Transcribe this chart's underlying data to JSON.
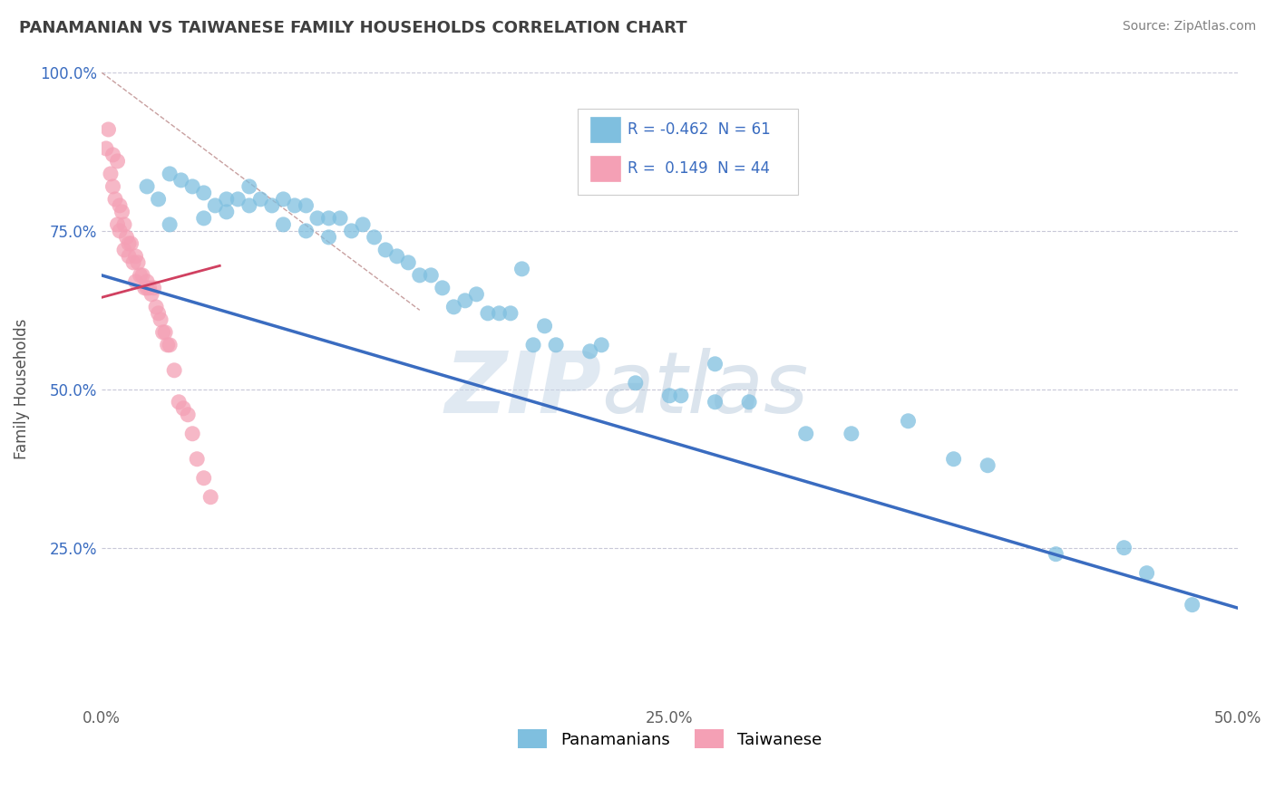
{
  "title": "PANAMANIAN VS TAIWANESE FAMILY HOUSEHOLDS CORRELATION CHART",
  "source": "Source: ZipAtlas.com",
  "ylabel": "Family Households",
  "watermark_top": "ZIP",
  "watermark_bot": "atlas",
  "xlim": [
    0.0,
    0.5
  ],
  "ylim": [
    0.0,
    1.0
  ],
  "xtick_labels": [
    "0.0%",
    "25.0%",
    "50.0%"
  ],
  "xtick_vals": [
    0.0,
    0.25,
    0.5
  ],
  "ytick_labels": [
    "25.0%",
    "50.0%",
    "75.0%",
    "100.0%"
  ],
  "ytick_vals": [
    0.25,
    0.5,
    0.75,
    1.0
  ],
  "blue_R": -0.462,
  "blue_N": 61,
  "pink_R": 0.149,
  "pink_N": 44,
  "blue_color": "#7fbfdf",
  "blue_edge": "#7fbfdf",
  "pink_color": "#f4a0b5",
  "pink_edge": "#f4a0b5",
  "line_blue": "#3a6cc0",
  "line_pink": "#d04060",
  "line_ref": "#c8a0a0",
  "legend_text_color": "#3a6cc0",
  "title_color": "#404040",
  "source_color": "#808080",
  "grid_color": "#c8c8d8",
  "background_color": "#ffffff",
  "blue_line_x": [
    0.0,
    0.5
  ],
  "blue_line_y": [
    0.68,
    0.155
  ],
  "pink_line_x": [
    0.0,
    0.052
  ],
  "pink_line_y": [
    0.645,
    0.695
  ],
  "ref_line_x": [
    0.0,
    0.14
  ],
  "ref_line_y": [
    1.0,
    0.625
  ],
  "blue_scatter_x": [
    0.02,
    0.025,
    0.03,
    0.03,
    0.035,
    0.04,
    0.045,
    0.045,
    0.05,
    0.055,
    0.055,
    0.06,
    0.065,
    0.065,
    0.07,
    0.075,
    0.08,
    0.08,
    0.085,
    0.09,
    0.09,
    0.095,
    0.1,
    0.1,
    0.105,
    0.11,
    0.115,
    0.12,
    0.125,
    0.13,
    0.135,
    0.14,
    0.145,
    0.15,
    0.155,
    0.16,
    0.165,
    0.17,
    0.175,
    0.18,
    0.19,
    0.195,
    0.2,
    0.215,
    0.22,
    0.235,
    0.25,
    0.255,
    0.27,
    0.285,
    0.31,
    0.33,
    0.355,
    0.375,
    0.39,
    0.42,
    0.45,
    0.46,
    0.185,
    0.27,
    0.48
  ],
  "blue_scatter_y": [
    0.82,
    0.8,
    0.76,
    0.84,
    0.83,
    0.82,
    0.81,
    0.77,
    0.79,
    0.8,
    0.78,
    0.8,
    0.82,
    0.79,
    0.8,
    0.79,
    0.8,
    0.76,
    0.79,
    0.79,
    0.75,
    0.77,
    0.77,
    0.74,
    0.77,
    0.75,
    0.76,
    0.74,
    0.72,
    0.71,
    0.7,
    0.68,
    0.68,
    0.66,
    0.63,
    0.64,
    0.65,
    0.62,
    0.62,
    0.62,
    0.57,
    0.6,
    0.57,
    0.56,
    0.57,
    0.51,
    0.49,
    0.49,
    0.48,
    0.48,
    0.43,
    0.43,
    0.45,
    0.39,
    0.38,
    0.24,
    0.25,
    0.21,
    0.69,
    0.54,
    0.16
  ],
  "pink_scatter_x": [
    0.002,
    0.003,
    0.004,
    0.005,
    0.005,
    0.006,
    0.007,
    0.007,
    0.008,
    0.008,
    0.009,
    0.01,
    0.01,
    0.011,
    0.012,
    0.012,
    0.013,
    0.014,
    0.015,
    0.015,
    0.016,
    0.017,
    0.018,
    0.019,
    0.02,
    0.02,
    0.021,
    0.022,
    0.023,
    0.024,
    0.025,
    0.026,
    0.027,
    0.028,
    0.029,
    0.03,
    0.032,
    0.034,
    0.036,
    0.038,
    0.04,
    0.042,
    0.045,
    0.048
  ],
  "pink_scatter_y": [
    0.88,
    0.91,
    0.84,
    0.87,
    0.82,
    0.8,
    0.86,
    0.76,
    0.79,
    0.75,
    0.78,
    0.76,
    0.72,
    0.74,
    0.73,
    0.71,
    0.73,
    0.7,
    0.71,
    0.67,
    0.7,
    0.68,
    0.68,
    0.66,
    0.67,
    0.66,
    0.66,
    0.65,
    0.66,
    0.63,
    0.62,
    0.61,
    0.59,
    0.59,
    0.57,
    0.57,
    0.53,
    0.48,
    0.47,
    0.46,
    0.43,
    0.39,
    0.36,
    0.33
  ]
}
